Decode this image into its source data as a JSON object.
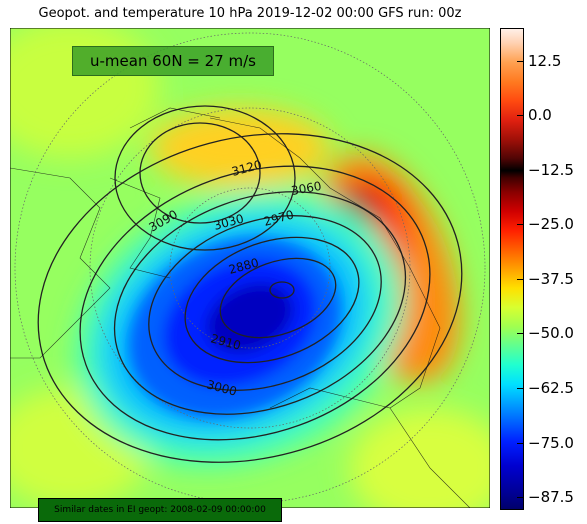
{
  "header": {
    "title": "Geopot. and temperature 10 hPa 2019-12-02 00:00 GFS run: 00z"
  },
  "annotation": "u-mean 60N = 27 m/s",
  "contour_labels": [
    "3120",
    "3060",
    "3030",
    "2970",
    "3090",
    "2880",
    "2910",
    "3000"
  ],
  "colorbar": {
    "range": [
      20,
      -90
    ],
    "ticks": [
      {
        "value": 12.5,
        "label": "12.5"
      },
      {
        "value": 0,
        "label": "0.0"
      },
      {
        "value": -12.5,
        "label": "−12.5"
      },
      {
        "value": -25,
        "label": "−25.0"
      },
      {
        "value": -37.5,
        "label": "−37.5"
      },
      {
        "value": -50,
        "label": "−50.0"
      },
      {
        "value": -62.5,
        "label": "−62.5"
      },
      {
        "value": -75,
        "label": "−75.0"
      },
      {
        "value": -87.5,
        "label": "−87.5"
      }
    ]
  },
  "footer": "Similar dates in EI geopt: 2008-02-09 00:00:00"
}
